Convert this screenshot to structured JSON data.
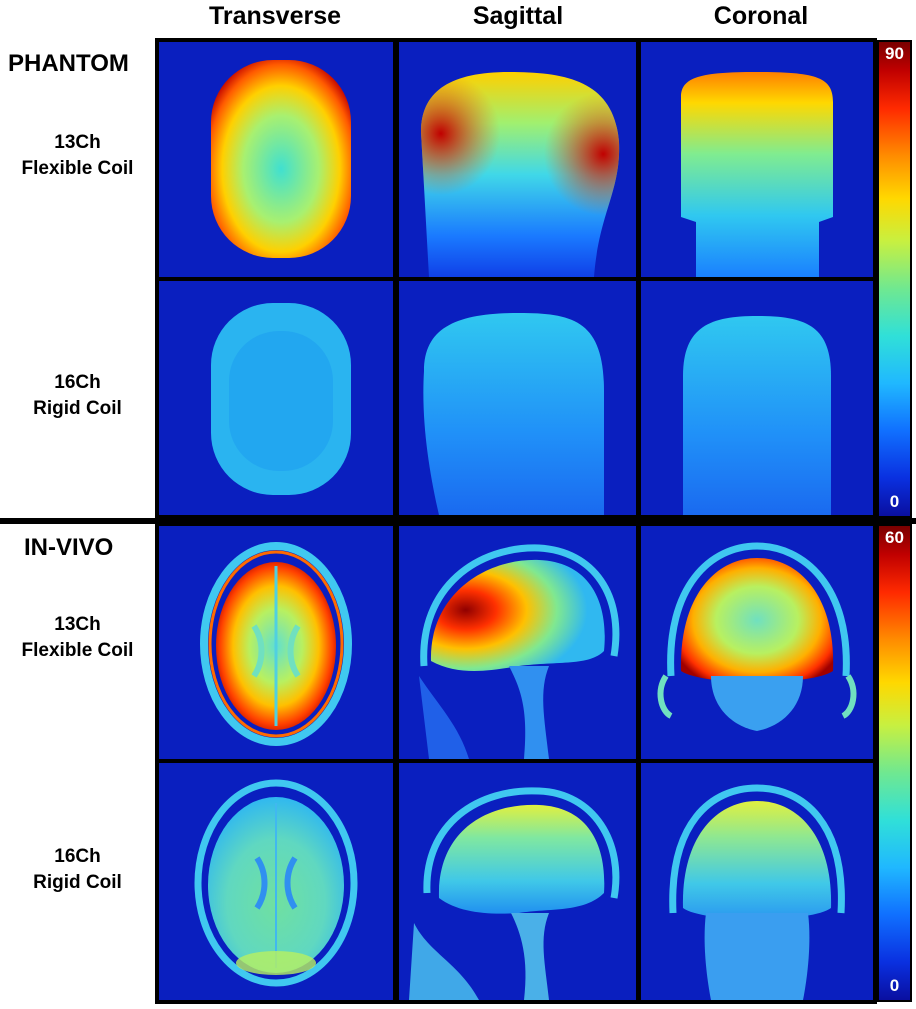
{
  "columns": [
    "Transverse",
    "Sagittal",
    "Coronal"
  ],
  "sections": [
    {
      "title": "PHANTOM",
      "colorbar": {
        "max": "90",
        "min": "0"
      },
      "rows": [
        {
          "line1": "13Ch",
          "line2": "Flexible Coil"
        },
        {
          "line1": "16Ch",
          "line2": "Rigid Coil"
        }
      ]
    },
    {
      "title": "IN-VIVO",
      "colorbar": {
        "max": "60",
        "min": "0"
      },
      "rows": [
        {
          "line1": "13Ch",
          "line2": "Flexible Coil"
        },
        {
          "line1": "16Ch",
          "line2": "Rigid Coil"
        }
      ]
    }
  ],
  "colors": {
    "background_blue": "#0a1fbf",
    "hot": "#c80000",
    "warm": "#ffcc00",
    "mid": "#40e0c0",
    "cool": "#1e90ff"
  }
}
